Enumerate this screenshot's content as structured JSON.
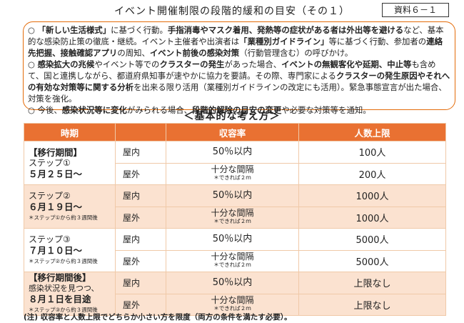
{
  "header": {
    "title": "イベント開催制限の段階的緩和の目安（その１）",
    "badge": "資料６－１"
  },
  "bullets": [
    {
      "segments": [
        {
          "text": "○ "
        },
        {
          "text": "「新しい生活様式」",
          "bold": true
        },
        {
          "text": "に基づく行動。"
        },
        {
          "text": "手指消毒やマスク着用、発熱等の症状がある者は外出等を避ける",
          "bold": true
        },
        {
          "text": "など、基本的な感染防止策の徹底・継続。イベント主催者や出演者は"
        },
        {
          "text": "「業種別ガイドライン」",
          "bold": true
        },
        {
          "text": "等に基づく行動、参加者の"
        },
        {
          "text": "連絡先把握、接触確認アプリ",
          "bold": true
        },
        {
          "text": "の周知、"
        },
        {
          "text": "イベント前後の感染対策",
          "bold": true
        },
        {
          "text": "（行動管理含む）の呼びかけ。"
        }
      ]
    },
    {
      "segments": [
        {
          "text": "○ "
        },
        {
          "text": "感染拡大の兆候",
          "bold": true
        },
        {
          "text": "やイベント等での"
        },
        {
          "text": "クラスターの発生",
          "bold": true
        },
        {
          "text": "があった場合、"
        },
        {
          "text": "イベントの無観客化や延期、中止等",
          "bold": true
        },
        {
          "text": "も含めて、国と連携しながら、都道府県知事が速やかに協力を要請。その際、専門家による"
        },
        {
          "text": "クラスターの発生原因やそれへの有効な対策等に関する分析",
          "bold": true
        },
        {
          "text": "を出来る限り活用（業種別ガイドラインの改定にも活用）。緊急事態宣言が出た場合、対策を強化。"
        }
      ]
    },
    {
      "segments": [
        {
          "text": "○ 今後、"
        },
        {
          "text": "感染状況等に変化",
          "bold": true
        },
        {
          "text": "がみられる場合、"
        },
        {
          "text": "段階的解除の目安の変更",
          "bold": true
        },
        {
          "text": "や必要な対策等を通知。"
        }
      ]
    }
  ],
  "section_title": "＜基本的な考え方＞",
  "table": {
    "header": {
      "period": "時期",
      "capacity": "収容率",
      "limit": "人数上限"
    },
    "groups": [
      {
        "period": [
          {
            "text": "【移行期間】",
            "style": "bold"
          },
          {
            "text": "ステップ①"
          },
          {
            "text": "５月２５日～",
            "style": "bold"
          }
        ],
        "rows": [
          {
            "place": "屋内",
            "capacity": [
              "50％以内"
            ],
            "limit": "100人"
          },
          {
            "place": "屋外",
            "capacity": [
              "十分な間隔",
              "＊できれば２ｍ"
            ],
            "limit": "200人"
          }
        ]
      },
      {
        "period": [
          {
            "text": "ステップ②"
          },
          {
            "text": "６月１９日～",
            "style": "bold"
          },
          {
            "text": "＊ステップ①から約３週間後",
            "style": "note"
          }
        ],
        "rows": [
          {
            "place": "屋内",
            "capacity": [
              "50％以内"
            ],
            "limit": "1000人"
          },
          {
            "place": "屋外",
            "capacity": [
              "十分な間隔",
              "＊できれば２ｍ"
            ],
            "limit": "1000人"
          }
        ]
      },
      {
        "period": [
          {
            "text": "ステップ③"
          },
          {
            "text": "７月１０日～",
            "style": "bold"
          },
          {
            "text": "＊ステップ②から約３週間後",
            "style": "note"
          }
        ],
        "rows": [
          {
            "place": "屋内",
            "capacity": [
              "50％以内"
            ],
            "limit": "5000人"
          },
          {
            "place": "屋外",
            "capacity": [
              "十分な間隔",
              "＊できれば２ｍ"
            ],
            "limit": "5000人"
          }
        ]
      },
      {
        "period": [
          {
            "text": "【移行期間後】",
            "style": "bold"
          },
          {
            "text": "感染状況を見つつ、",
            "style": "small"
          },
          {
            "text": "８月１日を目途",
            "style": "bold"
          },
          {
            "text": "＊ステップ③から約３週間後",
            "style": "note"
          }
        ],
        "rows": [
          {
            "place": "屋内",
            "capacity": [
              "50％以内"
            ],
            "limit": "上限なし"
          },
          {
            "place": "屋外",
            "capacity": [
              "十分な間隔",
              "＊できれば２ｍ"
            ],
            "limit": "上限なし"
          }
        ]
      }
    ]
  },
  "footnote": "(注) 収容率と人数上限でどちらか小さい方を限度（両方の条件を満たす必要）。"
}
